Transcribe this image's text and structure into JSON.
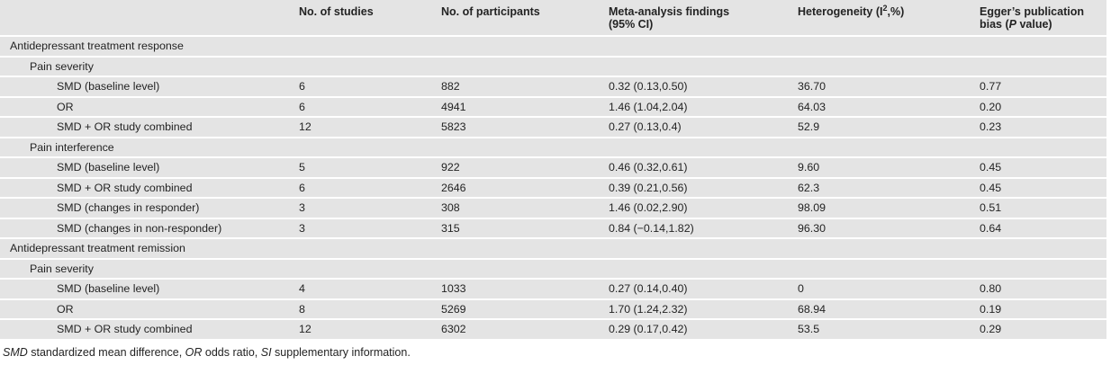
{
  "header": {
    "studies": "No. of studies",
    "participants": "No. of participants",
    "meta_line1": "Meta-analysis findings",
    "meta_line2": "(95% CI)",
    "heterogeneity_pre": "Heterogeneity (I",
    "heterogeneity_sup": "2",
    "heterogeneity_post": ",%)",
    "egger_line1": "Egger’s publication",
    "egger_line2_pre": "bias (",
    "egger_line2_italic": "P",
    "egger_line2_post": " value)"
  },
  "table": {
    "rows": [
      {
        "level": 0,
        "label": "Antidepressant treatment response",
        "studies": "",
        "participants": "",
        "findings": "",
        "heterogeneity": "",
        "egger": ""
      },
      {
        "level": 1,
        "label": "Pain severity",
        "studies": "",
        "participants": "",
        "findings": "",
        "heterogeneity": "",
        "egger": ""
      },
      {
        "level": 2,
        "label": "SMD (baseline level)",
        "studies": "6",
        "participants": "882",
        "findings": "0.32 (0.13,0.50)",
        "heterogeneity": "36.70",
        "egger": "0.77"
      },
      {
        "level": 2,
        "label": "OR",
        "studies": "6",
        "participants": "4941",
        "findings": "1.46 (1.04,2.04)",
        "heterogeneity": "64.03",
        "egger": "0.20"
      },
      {
        "level": 2,
        "label": "SMD + OR study combined",
        "studies": "12",
        "participants": "5823",
        "findings": "0.27 (0.13,0.4)",
        "heterogeneity": "52.9",
        "egger": "0.23"
      },
      {
        "level": 1,
        "label": "Pain interference",
        "studies": "",
        "participants": "",
        "findings": "",
        "heterogeneity": "",
        "egger": ""
      },
      {
        "level": 2,
        "label": "SMD (baseline level)",
        "studies": "5",
        "participants": "922",
        "findings": "0.46 (0.32,0.61)",
        "heterogeneity": "9.60",
        "egger": "0.45"
      },
      {
        "level": 2,
        "label": "SMD + OR study combined",
        "studies": "6",
        "participants": "2646",
        "findings": "0.39 (0.21,0.56)",
        "heterogeneity": "62.3",
        "egger": "0.45"
      },
      {
        "level": 2,
        "label": "SMD (changes in responder)",
        "studies": "3",
        "participants": "308",
        "findings": "1.46 (0.02,2.90)",
        "heterogeneity": "98.09",
        "egger": "0.51"
      },
      {
        "level": 2,
        "label": "SMD (changes in non-responder)",
        "studies": "3",
        "participants": "315",
        "findings": "0.84 (−0.14,1.82)",
        "heterogeneity": "96.30",
        "egger": "0.64"
      },
      {
        "level": 0,
        "label": "Antidepressant treatment remission",
        "studies": "",
        "participants": "",
        "findings": "",
        "heterogeneity": "",
        "egger": ""
      },
      {
        "level": 1,
        "label": "Pain severity",
        "studies": "",
        "participants": "",
        "findings": "",
        "heterogeneity": "",
        "egger": ""
      },
      {
        "level": 2,
        "label": "SMD (baseline level)",
        "studies": "4",
        "participants": "1033",
        "findings": "0.27 (0.14,0.40)",
        "heterogeneity": "0",
        "egger": "0.80"
      },
      {
        "level": 2,
        "label": "OR",
        "studies": "8",
        "participants": "5269",
        "findings": "1.70 (1.24,2.32)",
        "heterogeneity": "68.94",
        "egger": "0.19"
      },
      {
        "level": 2,
        "label": "SMD + OR study combined",
        "studies": "12",
        "participants": "6302",
        "findings": "0.29 (0.17,0.42)",
        "heterogeneity": "53.5",
        "egger": "0.29"
      }
    ]
  },
  "footnote": {
    "parts": [
      {
        "text": "SMD",
        "italic": true
      },
      {
        "text": " standardized mean difference, ",
        "italic": false
      },
      {
        "text": "OR",
        "italic": true
      },
      {
        "text": " odds ratio, ",
        "italic": false
      },
      {
        "text": "SI",
        "italic": true
      },
      {
        "text": " supplementary information.",
        "italic": false
      }
    ]
  },
  "colors": {
    "row_band": "#e4e4e4",
    "separator": "#ffffff",
    "text": "#232323"
  }
}
